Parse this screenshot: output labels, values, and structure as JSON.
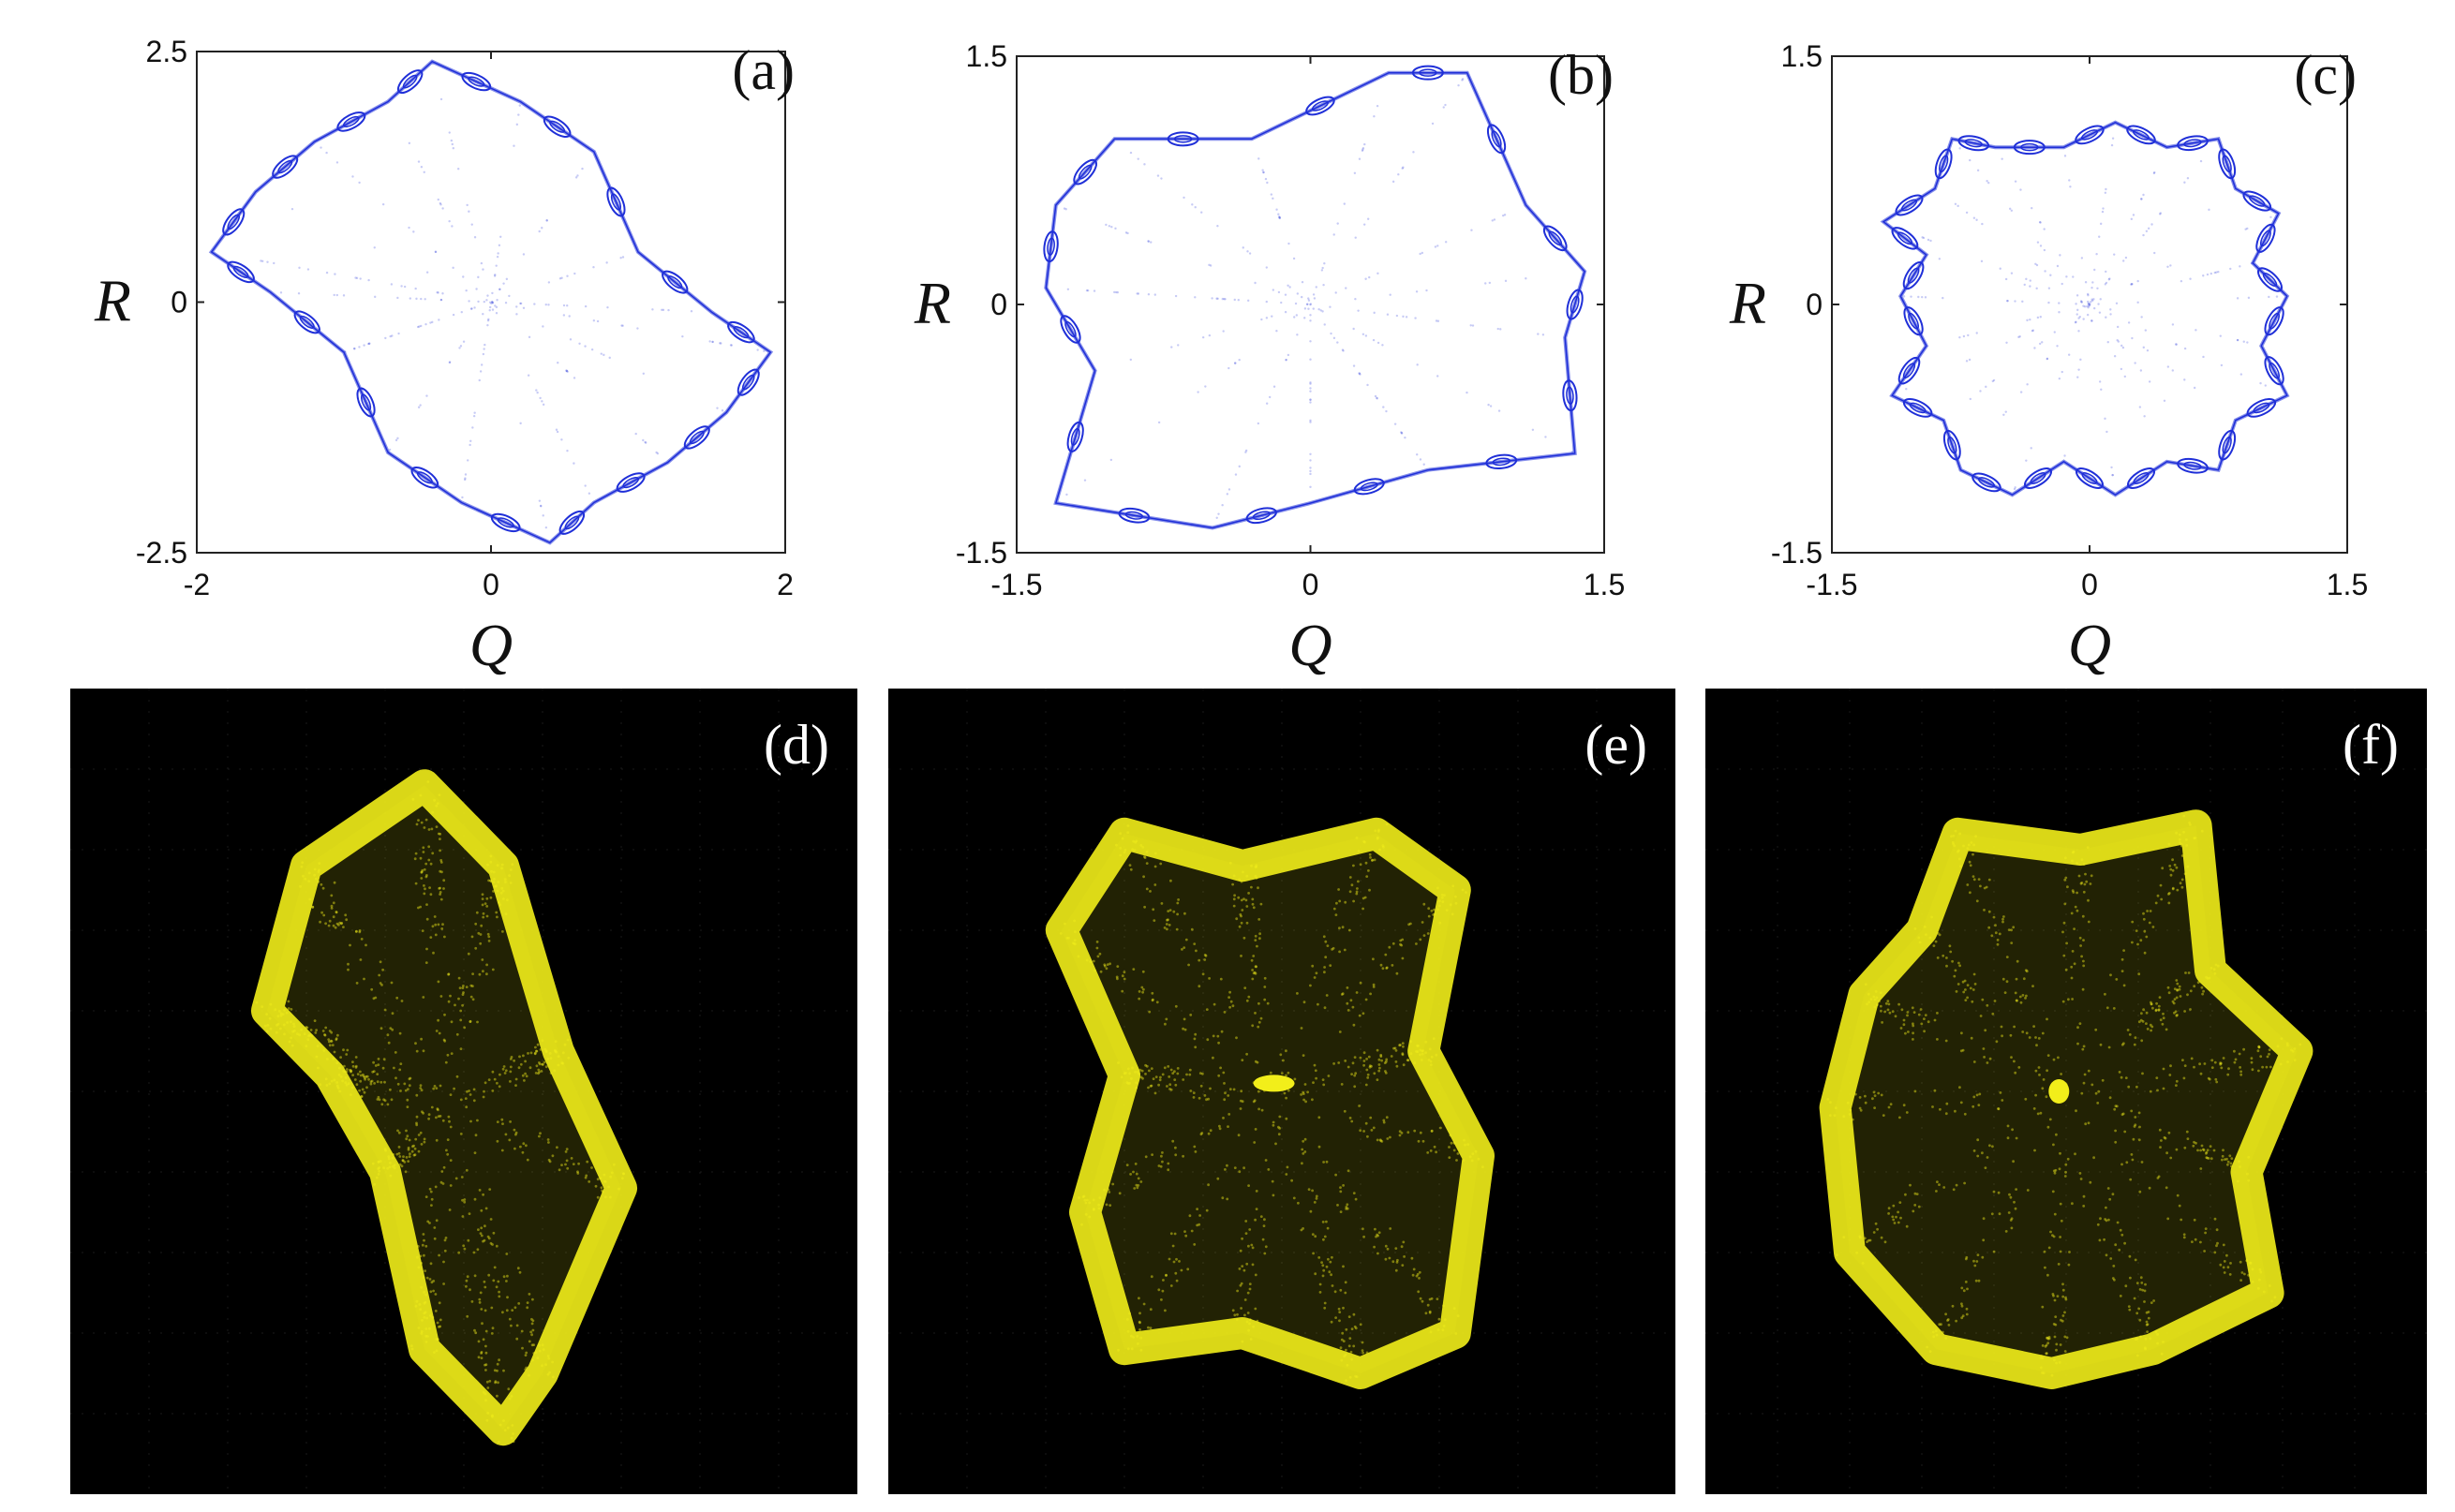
{
  "figure": {
    "top_panels": [
      {
        "id": "a",
        "label": "(a)",
        "xlabel": "Q",
        "ylabel": "R",
        "xlim": [
          -2,
          2
        ],
        "ylim": [
          -2.5,
          2.5
        ],
        "xticks": [
          "-2",
          "0",
          "2"
        ],
        "yticks": [
          "2.5",
          "0",
          "-2.5"
        ],
        "point_color": "#1f2fd8"
      },
      {
        "id": "b",
        "label": "(b)",
        "xlabel": "Q",
        "ylabel": "R",
        "xlim": [
          -1.5,
          1.5
        ],
        "ylim": [
          -1.5,
          1.5
        ],
        "xticks": [
          "-1.5",
          "0",
          "1.5"
        ],
        "yticks": [
          "1.5",
          "0",
          "-1.5"
        ],
        "point_color": "#1f2fd8"
      },
      {
        "id": "c",
        "label": "(c)",
        "xlabel": "Q",
        "ylabel": "R",
        "xlim": [
          -1.5,
          1.5
        ],
        "ylim": [
          -1.5,
          1.5
        ],
        "xticks": [
          "-1.5",
          "0",
          "1.5"
        ],
        "yticks": [
          "1.5",
          "0",
          "-1.5"
        ],
        "point_color": "#1f2fd8"
      }
    ],
    "bottom_panels": [
      {
        "id": "d",
        "label": "(d)",
        "background": "#000000",
        "trace_color": "#f2ee1a"
      },
      {
        "id": "e",
        "label": "(e)",
        "background": "#000000",
        "trace_color": "#f2ee1a"
      },
      {
        "id": "f",
        "label": "(f)",
        "background": "#000000",
        "trace_color": "#f2ee1a"
      }
    ]
  },
  "chart_data": [
    {
      "type": "scatter",
      "panel": "(a)",
      "xlabel": "Q",
      "ylabel": "R",
      "xlim": [
        -2,
        2
      ],
      "ylim": [
        -2.5,
        2.5
      ],
      "grid": false,
      "series": [
        {
          "boundary": [
            [
              -0.4,
              2.4
            ],
            [
              0.2,
              2.0
            ],
            [
              0.7,
              1.5
            ],
            [
              1.0,
              0.5
            ],
            [
              1.5,
              -0.1
            ],
            [
              1.9,
              -0.5
            ],
            [
              1.6,
              -1.1
            ],
            [
              1.2,
              -1.6
            ],
            [
              0.7,
              -2.0
            ],
            [
              0.4,
              -2.4
            ],
            [
              -0.2,
              -2.0
            ],
            [
              -0.7,
              -1.5
            ],
            [
              -1.0,
              -0.5
            ],
            [
              -1.5,
              0.1
            ],
            [
              -1.9,
              0.5
            ],
            [
              -1.6,
              1.1
            ],
            [
              -1.2,
              1.6
            ],
            [
              -0.7,
              2.0
            ]
          ]
        }
      ]
    },
    {
      "type": "scatter",
      "panel": "(b)",
      "xlabel": "Q",
      "ylabel": "R",
      "xlim": [
        -1.5,
        1.5
      ],
      "ylim": [
        -1.5,
        1.5
      ],
      "grid": false,
      "series": [
        {
          "boundary": [
            [
              -1.0,
              1.0
            ],
            [
              -0.3,
              1.0
            ],
            [
              0.4,
              1.4
            ],
            [
              0.8,
              1.4
            ],
            [
              1.1,
              0.6
            ],
            [
              1.4,
              0.2
            ],
            [
              1.3,
              -0.2
            ],
            [
              1.35,
              -0.9
            ],
            [
              0.6,
              -1.0
            ],
            [
              0.0,
              -1.2
            ],
            [
              -0.5,
              -1.35
            ],
            [
              -1.3,
              -1.2
            ],
            [
              -1.1,
              -0.4
            ],
            [
              -1.35,
              0.1
            ],
            [
              -1.3,
              0.6
            ]
          ]
        }
      ]
    },
    {
      "type": "scatter",
      "panel": "(c)",
      "xlabel": "Q",
      "ylabel": "R",
      "xlim": [
        -1.5,
        1.5
      ],
      "ylim": [
        -1.5,
        1.5
      ],
      "grid": false,
      "series": [
        {
          "boundary": [
            [
              -0.55,
              0.95
            ],
            [
              -0.15,
              0.95
            ],
            [
              0.15,
              1.1
            ],
            [
              0.45,
              0.95
            ],
            [
              0.75,
              1.0
            ],
            [
              0.85,
              0.7
            ],
            [
              1.1,
              0.55
            ],
            [
              0.95,
              0.25
            ],
            [
              1.15,
              0.05
            ],
            [
              1.0,
              -0.25
            ],
            [
              1.15,
              -0.55
            ],
            [
              0.85,
              -0.7
            ],
            [
              0.75,
              -1.0
            ],
            [
              0.45,
              -0.95
            ],
            [
              0.15,
              -1.15
            ],
            [
              -0.15,
              -0.95
            ],
            [
              -0.45,
              -1.15
            ],
            [
              -0.75,
              -1.0
            ],
            [
              -0.85,
              -0.7
            ],
            [
              -1.15,
              -0.55
            ],
            [
              -0.95,
              -0.25
            ],
            [
              -1.1,
              0.05
            ],
            [
              -0.95,
              0.3
            ],
            [
              -1.2,
              0.5
            ],
            [
              -0.9,
              0.7
            ],
            [
              -0.8,
              1.0
            ]
          ]
        }
      ]
    }
  ]
}
